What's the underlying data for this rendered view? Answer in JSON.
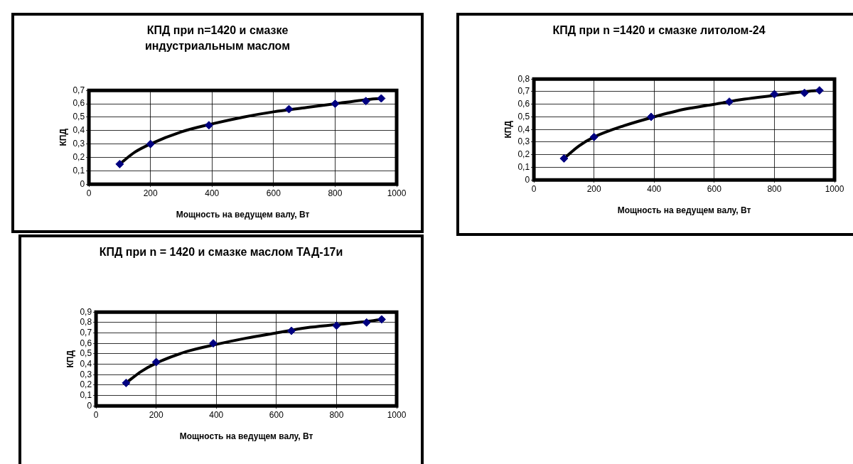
{
  "chart_data": [
    {
      "type": "scatter",
      "title": "КПД при n=1420 и смазке индустриальным маслом",
      "xlabel": "Мощность на ведущем валу, Вт",
      "ylabel": "КПД",
      "xlim": [
        0,
        1000
      ],
      "xticks": [
        0,
        200,
        400,
        600,
        800,
        1000
      ],
      "ylim": [
        0,
        0.7
      ],
      "yticks": [
        {
          "value": 0,
          "label": "0"
        },
        {
          "value": 0.1,
          "label": "0,1"
        },
        {
          "value": 0.2,
          "label": "0,2"
        },
        {
          "value": 0.3,
          "label": "0,3"
        },
        {
          "value": 0.4,
          "label": "0,4"
        },
        {
          "value": 0.5,
          "label": "0,5"
        },
        {
          "value": 0.6,
          "label": "0,6"
        },
        {
          "value": 0.7,
          "label": "0,7"
        }
      ],
      "grid": true,
      "legend": false,
      "series": [
        {
          "type": "scatter",
          "color": "#000080",
          "marker": "diamond",
          "x": [
            100,
            200,
            390,
            650,
            800,
            900,
            950
          ],
          "values": [
            0.15,
            0.3,
            0.44,
            0.56,
            0.6,
            0.62,
            0.64
          ]
        },
        {
          "type": "line",
          "color": "#000000",
          "marker": "none",
          "line_style": "solid",
          "x": [
            100,
            150,
            200,
            300,
            400,
            500,
            600,
            700,
            800,
            900,
            950
          ],
          "values": [
            0.15,
            0.24,
            0.3,
            0.39,
            0.45,
            0.5,
            0.54,
            0.57,
            0.6,
            0.63,
            0.64
          ]
        }
      ]
    },
    {
      "type": "scatter",
      "title": "КПД при n =1420 и смазке литолом-24",
      "xlabel": "Мощность на ведущем валу, Вт",
      "ylabel": "КПД",
      "xlim": [
        0,
        1000
      ],
      "xticks": [
        0,
        200,
        400,
        600,
        800,
        1000
      ],
      "ylim": [
        0,
        0.8
      ],
      "yticks": [
        {
          "value": 0,
          "label": "0"
        },
        {
          "value": 0.1,
          "label": "0,1"
        },
        {
          "value": 0.2,
          "label": "0,2"
        },
        {
          "value": 0.3,
          "label": "0,3"
        },
        {
          "value": 0.4,
          "label": "0,4"
        },
        {
          "value": 0.5,
          "label": "0,5"
        },
        {
          "value": 0.6,
          "label": "0,6"
        },
        {
          "value": 0.7,
          "label": "0,7"
        },
        {
          "value": 0.8,
          "label": "0,8"
        }
      ],
      "grid": true,
      "legend": false,
      "series": [
        {
          "type": "scatter",
          "color": "#000080",
          "marker": "diamond",
          "x": [
            100,
            200,
            390,
            650,
            800,
            900,
            950
          ],
          "values": [
            0.17,
            0.34,
            0.5,
            0.62,
            0.68,
            0.69,
            0.71
          ]
        },
        {
          "type": "line",
          "color": "#000000",
          "marker": "none",
          "line_style": "solid",
          "x": [
            100,
            150,
            200,
            300,
            400,
            500,
            600,
            700,
            800,
            900,
            950
          ],
          "values": [
            0.17,
            0.27,
            0.34,
            0.43,
            0.5,
            0.56,
            0.6,
            0.64,
            0.67,
            0.7,
            0.71
          ]
        }
      ]
    },
    {
      "type": "scatter",
      "title": "КПД  при n = 1420 и смазке маслом ТАД-17и",
      "xlabel": "Мощность на ведущем валу, Вт",
      "ylabel": "КПД",
      "xlim": [
        0,
        1000
      ],
      "xticks": [
        0,
        200,
        400,
        600,
        800,
        1000
      ],
      "ylim": [
        0,
        0.9
      ],
      "yticks": [
        {
          "value": 0,
          "label": "0"
        },
        {
          "value": 0.1,
          "label": "0,1"
        },
        {
          "value": 0.2,
          "label": "0,2"
        },
        {
          "value": 0.3,
          "label": "0,3"
        },
        {
          "value": 0.4,
          "label": "0,4"
        },
        {
          "value": 0.5,
          "label": "0,5"
        },
        {
          "value": 0.6,
          "label": "0,6"
        },
        {
          "value": 0.7,
          "label": "0,7"
        },
        {
          "value": 0.8,
          "label": "0,8"
        },
        {
          "value": 0.9,
          "label": "0,9"
        }
      ],
      "grid": true,
      "legend": false,
      "series": [
        {
          "type": "scatter",
          "color": "#000080",
          "marker": "diamond",
          "x": [
            100,
            200,
            390,
            650,
            800,
            900,
            950
          ],
          "values": [
            0.22,
            0.42,
            0.6,
            0.72,
            0.77,
            0.8,
            0.83
          ]
        },
        {
          "type": "line",
          "color": "#000000",
          "marker": "none",
          "line_style": "solid",
          "x": [
            100,
            150,
            200,
            300,
            400,
            500,
            600,
            700,
            800,
            900,
            950
          ],
          "values": [
            0.22,
            0.33,
            0.41,
            0.52,
            0.59,
            0.65,
            0.7,
            0.75,
            0.78,
            0.81,
            0.83
          ]
        }
      ]
    }
  ]
}
